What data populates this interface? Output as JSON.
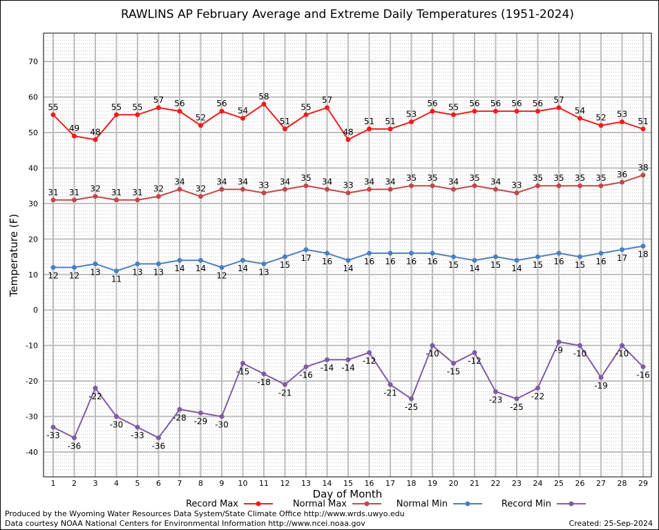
{
  "chart_data": {
    "type": "line",
    "title": "RAWLINS AP February Average and Extreme Daily Temperatures (1951-2024)",
    "xlabel": "Day of Month",
    "ylabel": "Temperature (F)",
    "ylim": [
      -47,
      78
    ],
    "yticks": [
      -40,
      -30,
      -20,
      -10,
      0,
      10,
      20,
      30,
      40,
      50,
      60,
      70
    ],
    "categories": [
      1,
      2,
      3,
      4,
      5,
      6,
      7,
      8,
      9,
      10,
      11,
      12,
      13,
      14,
      15,
      16,
      17,
      18,
      19,
      20,
      21,
      22,
      23,
      24,
      25,
      26,
      27,
      28,
      29
    ],
    "grid": true,
    "legend_position": "bottom",
    "series": [
      {
        "name": "Record Max",
        "color": "#ee1c1c",
        "label_position": "above",
        "values": [
          55,
          49,
          48,
          55,
          55,
          57,
          56,
          52,
          56,
          54,
          58,
          51,
          55,
          57,
          48,
          51,
          51,
          53,
          56,
          55,
          56,
          56,
          56,
          56,
          57,
          54,
          52,
          53,
          51
        ]
      },
      {
        "name": "Normal Max",
        "color": "#c04848",
        "label_position": "above",
        "values": [
          31,
          31,
          32,
          31,
          31,
          32,
          34,
          32,
          34,
          34,
          33,
          34,
          35,
          34,
          33,
          34,
          34,
          35,
          35,
          34,
          35,
          34,
          33,
          35,
          35,
          35,
          35,
          36,
          38
        ]
      },
      {
        "name": "Normal Min",
        "color": "#4a7fbf",
        "label_position": "below",
        "values": [
          12,
          12,
          13,
          11,
          13,
          13,
          14,
          14,
          12,
          14,
          13,
          15,
          17,
          16,
          14,
          16,
          16,
          16,
          16,
          15,
          14,
          15,
          14,
          15,
          16,
          15,
          16,
          17,
          18
        ]
      },
      {
        "name": "Record Min",
        "color": "#7e5ba3",
        "label_position": "below",
        "values": [
          -33,
          -36,
          -22,
          -30,
          -33,
          -36,
          -28,
          -29,
          -30,
          -15,
          -18,
          -21,
          -16,
          -14,
          -14,
          -12,
          -21,
          -25,
          -10,
          -15,
          -12,
          -23,
          -25,
          -22,
          -9,
          -10,
          -19,
          -10,
          -16
        ]
      }
    ]
  },
  "footer": {
    "produced_by": "Produced by the Wyoming Water Resources Data System/State Climate Office http://www.wrds.uwyo.edu",
    "courtesy": "Data courtesy NOAA National Centers for Environmental Information http://www.ncei.noaa.gov",
    "created": "Created:  25-Sep-2024"
  }
}
